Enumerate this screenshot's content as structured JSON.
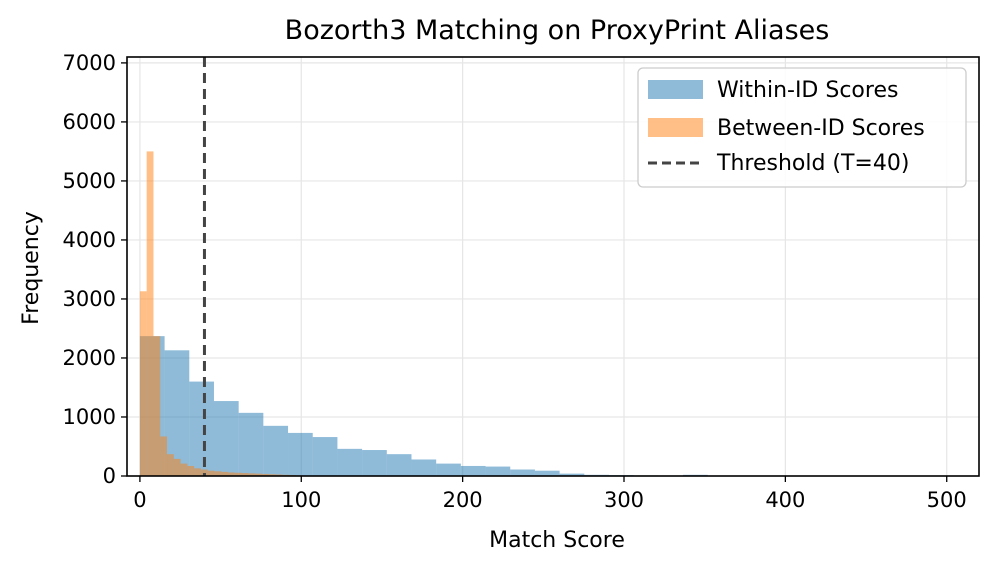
{
  "chart_data": {
    "type": "histogram",
    "title": "Bozorth3 Matching on ProxyPrint Aliases",
    "xlabel": "Match Score",
    "ylabel": "Frequency",
    "xlim": [
      -8,
      520
    ],
    "ylim": [
      0,
      7100
    ],
    "xticks": [
      0,
      100,
      200,
      300,
      400,
      500
    ],
    "yticks": [
      0,
      1000,
      2000,
      3000,
      4000,
      5000,
      6000,
      7000
    ],
    "grid": true,
    "legend_position": "upper right",
    "series": [
      {
        "name": "Within-ID Scores",
        "color": "#1f77b4",
        "alpha": 0.5,
        "bins": [
          {
            "x0": 0,
            "x1": 15.3,
            "value": 2370
          },
          {
            "x0": 15.3,
            "x1": 30.6,
            "value": 2130
          },
          {
            "x0": 30.6,
            "x1": 45.9,
            "value": 1600
          },
          {
            "x0": 45.9,
            "x1": 61.2,
            "value": 1270
          },
          {
            "x0": 61.2,
            "x1": 76.5,
            "value": 1070
          },
          {
            "x0": 76.5,
            "x1": 91.8,
            "value": 850
          },
          {
            "x0": 91.8,
            "x1": 107.1,
            "value": 730
          },
          {
            "x0": 107.1,
            "x1": 122.4,
            "value": 660
          },
          {
            "x0": 122.4,
            "x1": 137.7,
            "value": 460
          },
          {
            "x0": 137.7,
            "x1": 153.0,
            "value": 440
          },
          {
            "x0": 153.0,
            "x1": 168.3,
            "value": 370
          },
          {
            "x0": 168.3,
            "x1": 183.6,
            "value": 280
          },
          {
            "x0": 183.6,
            "x1": 198.9,
            "value": 210
          },
          {
            "x0": 198.9,
            "x1": 214.2,
            "value": 170
          },
          {
            "x0": 214.2,
            "x1": 229.5,
            "value": 160
          },
          {
            "x0": 229.5,
            "x1": 244.8,
            "value": 110
          },
          {
            "x0": 244.8,
            "x1": 260.1,
            "value": 90
          },
          {
            "x0": 260.1,
            "x1": 275.4,
            "value": 40
          },
          {
            "x0": 275.4,
            "x1": 290.7,
            "value": 20
          },
          {
            "x0": 290.7,
            "x1": 306.0,
            "value": 15
          },
          {
            "x0": 306.0,
            "x1": 321.3,
            "value": 10
          },
          {
            "x0": 321.3,
            "x1": 336.6,
            "value": 5
          },
          {
            "x0": 336.6,
            "x1": 351.9,
            "value": 20
          },
          {
            "x0": 351.9,
            "x1": 367.2,
            "value": 5
          }
        ]
      },
      {
        "name": "Between-ID Scores",
        "color": "#ff7f0e",
        "alpha": 0.5,
        "bins": [
          {
            "x0": 0,
            "x1": 4.2,
            "value": 3130
          },
          {
            "x0": 4.2,
            "x1": 8.4,
            "value": 5500
          },
          {
            "x0": 8.4,
            "x1": 12.6,
            "value": 2370
          },
          {
            "x0": 12.6,
            "x1": 16.8,
            "value": 670
          },
          {
            "x0": 16.8,
            "x1": 21.0,
            "value": 370
          },
          {
            "x0": 21.0,
            "x1": 25.2,
            "value": 290
          },
          {
            "x0": 25.2,
            "x1": 29.4,
            "value": 210
          },
          {
            "x0": 29.4,
            "x1": 33.6,
            "value": 170
          },
          {
            "x0": 33.6,
            "x1": 37.8,
            "value": 130
          },
          {
            "x0": 37.8,
            "x1": 42.0,
            "value": 110
          },
          {
            "x0": 42.0,
            "x1": 46.2,
            "value": 90
          },
          {
            "x0": 46.2,
            "x1": 50.4,
            "value": 80
          },
          {
            "x0": 50.4,
            "x1": 54.6,
            "value": 70
          },
          {
            "x0": 54.6,
            "x1": 58.8,
            "value": 60
          },
          {
            "x0": 58.8,
            "x1": 63.0,
            "value": 55
          },
          {
            "x0": 63.0,
            "x1": 67.2,
            "value": 50
          },
          {
            "x0": 67.2,
            "x1": 71.4,
            "value": 45
          },
          {
            "x0": 71.4,
            "x1": 75.6,
            "value": 40
          },
          {
            "x0": 75.6,
            "x1": 79.8,
            "value": 35
          },
          {
            "x0": 79.8,
            "x1": 84.0,
            "value": 30
          },
          {
            "x0": 84.0,
            "x1": 88.2,
            "value": 25
          },
          {
            "x0": 88.2,
            "x1": 92.4,
            "value": 20
          },
          {
            "x0": 92.4,
            "x1": 96.6,
            "value": 15
          },
          {
            "x0": 96.6,
            "x1": 100.8,
            "value": 10
          }
        ]
      }
    ],
    "threshold": {
      "name": "Threshold (T=40)",
      "x": 40,
      "color": "#444444",
      "style": "dashed"
    }
  }
}
